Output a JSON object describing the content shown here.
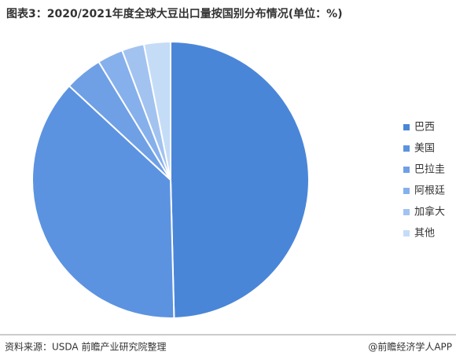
{
  "chart_data": {
    "type": "pie",
    "title": "图表3：2020/2021年度全球大豆出口量按国别分布情况(单位：%)",
    "categories": [
      "巴西",
      "美国",
      "巴拉圭",
      "阿根廷",
      "加拿大",
      "其他"
    ],
    "values": [
      49.6,
      37.3,
      4.4,
      3.0,
      2.6,
      3.1
    ],
    "colors": [
      "#4a86d8",
      "#5b93e0",
      "#6fa0e6",
      "#86b0ec",
      "#a2c3f0",
      "#c5dcf7"
    ],
    "legend": "right"
  },
  "source": "资料来源：USDA 前瞻产业研究院整理",
  "credit": "@前瞻经济学人APP"
}
